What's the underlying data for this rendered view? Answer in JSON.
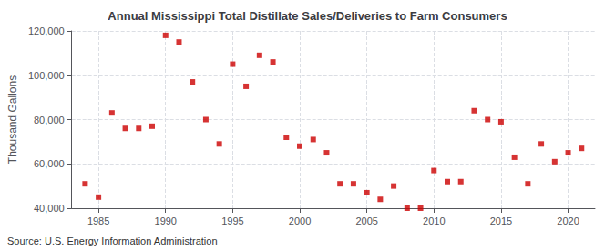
{
  "chart_data": {
    "type": "scatter",
    "title": "Annual Mississippi Total Distillate Sales/Deliveries to Farm Consumers",
    "ylabel": "Thousand Gallons",
    "annotation": "Source: U.S. Energy Information Administration",
    "color": "#CC0000",
    "marker": "square",
    "grid": true,
    "x": [
      1984,
      1985,
      1986,
      1987,
      1988,
      1989,
      1990,
      1991,
      1992,
      1993,
      1994,
      1995,
      1996,
      1997,
      1998,
      1999,
      2000,
      2001,
      2002,
      2003,
      2004,
      2005,
      2006,
      2007,
      2008,
      2009,
      2010,
      2011,
      2012,
      2013,
      2014,
      2015,
      2016,
      2017,
      2018,
      2019,
      2020,
      2021
    ],
    "values": [
      51000,
      45000,
      83000,
      76000,
      76000,
      77000,
      118000,
      115000,
      97000,
      80000,
      69000,
      105000,
      95000,
      109000,
      106000,
      72000,
      68000,
      71000,
      65000,
      51000,
      51000,
      47000,
      44000,
      50000,
      40000,
      40000,
      57000,
      52000,
      52000,
      84000,
      80000,
      79000,
      63000,
      51000,
      69000,
      61000,
      65000,
      67000
    ],
    "xlim": [
      1983,
      2022
    ],
    "xticks": [
      1985,
      1990,
      1995,
      2000,
      2005,
      2010,
      2015,
      2020
    ],
    "ylim": [
      40000,
      120000
    ],
    "yticks": [
      {
        "value": 40000,
        "label": "40,000"
      },
      {
        "value": 60000,
        "label": "60,000"
      },
      {
        "value": 80000,
        "label": "80,000"
      },
      {
        "value": 100000,
        "label": "100,000"
      },
      {
        "value": 120000,
        "label": "120,000"
      }
    ]
  }
}
